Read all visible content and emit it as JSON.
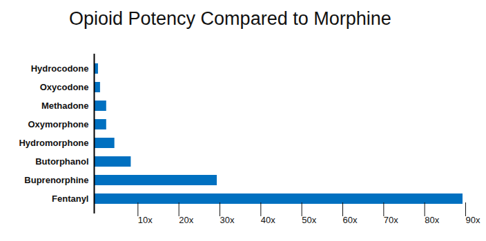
{
  "chart_data": {
    "type": "bar",
    "title": "Opioid Potency Compared to Morphine",
    "orientation": "horizontal",
    "categories": [
      "Hydrocodone",
      "Oxycodone",
      "Methadone",
      "Oxymorphone",
      "Hydromorphone",
      "Butorphanol",
      "Buprenorphine",
      "Fentanyl"
    ],
    "values": [
      1,
      1.5,
      3,
      3,
      5,
      9,
      30,
      90
    ],
    "color": "#0070c0",
    "xlim": [
      0,
      90
    ],
    "xticks": [
      {
        "value": 10,
        "label": "10x"
      },
      {
        "value": 20,
        "label": "20x"
      },
      {
        "value": 30,
        "label": "30x"
      },
      {
        "value": 40,
        "label": "40x"
      },
      {
        "value": 50,
        "label": "50x"
      },
      {
        "value": 60,
        "label": "60x"
      },
      {
        "value": 70,
        "label": "70x"
      },
      {
        "value": 80,
        "label": "80x"
      },
      {
        "value": 90,
        "label": "90x"
      }
    ]
  }
}
